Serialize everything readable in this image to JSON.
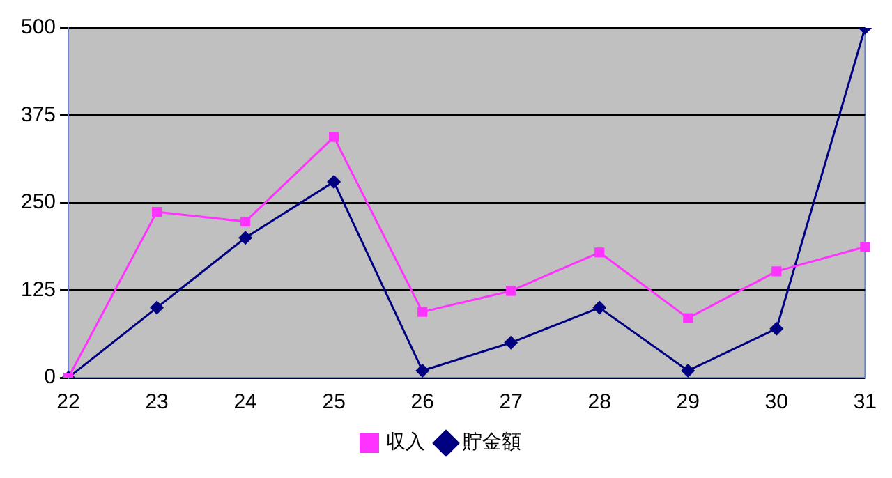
{
  "chart_data": {
    "type": "line",
    "categories": [
      "22",
      "23",
      "24",
      "25",
      "26",
      "27",
      "28",
      "29",
      "30",
      "31"
    ],
    "series": [
      {
        "name": "収入",
        "color": "#ff33ff",
        "marker": "square",
        "values": [
          0,
          237,
          223,
          344,
          94,
          124,
          179,
          85,
          152,
          187
        ]
      },
      {
        "name": "貯金額",
        "color": "#000080",
        "marker": "diamond",
        "values": [
          0,
          100,
          200,
          280,
          10,
          50,
          100,
          10,
          70,
          500
        ]
      }
    ],
    "ylim": [
      0,
      500
    ],
    "yticks": [
      0,
      125,
      250,
      375,
      500
    ],
    "grid": "y",
    "legend": "bottom",
    "line_style": "solid"
  }
}
